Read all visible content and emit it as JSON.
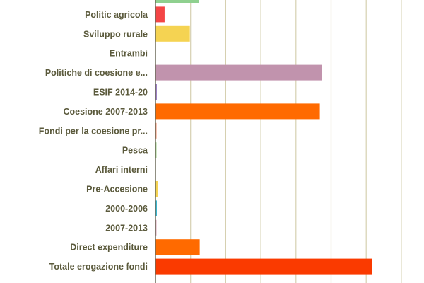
{
  "chart_data": {
    "type": "bar",
    "orientation": "horizontal",
    "categories": [
      "",
      "Politic agricola",
      "Sviluppo rurale",
      "Entrambi",
      "Politiche di coesione e...",
      "ESIF 2014-20",
      "Coesione 2007-2013",
      "Fondi per la coesione pr...",
      "Pesca",
      "Affari interni",
      "Pre-Accesione",
      "2000-2006",
      "2007-2013",
      "Direct expenditure",
      "Totale erogazione fondi"
    ],
    "values": [
      62,
      13,
      49,
      0,
      237,
      2,
      234,
      1,
      0.5,
      0,
      3,
      2,
      1,
      63,
      308
    ],
    "colors": [
      "#8fd08f",
      "#f44545",
      "#f5d352",
      "#ffffff",
      "#c193ad",
      "#9b7fc4",
      "#ff6a00",
      "#f08a6a",
      "#9ccf8a",
      "#ffffff",
      "#f5d352",
      "#3bb5d0",
      "#d9a3b8",
      "#ff6a00",
      "#fa3a00"
    ],
    "xlim": [
      0,
      350
    ],
    "xticks": [
      "0",
      "50",
      "100",
      "150",
      "200",
      "250",
      "300",
      "350"
    ],
    "grid": true,
    "gridline_color": "#d6d0b0",
    "label_color": "#5b5a3c"
  }
}
